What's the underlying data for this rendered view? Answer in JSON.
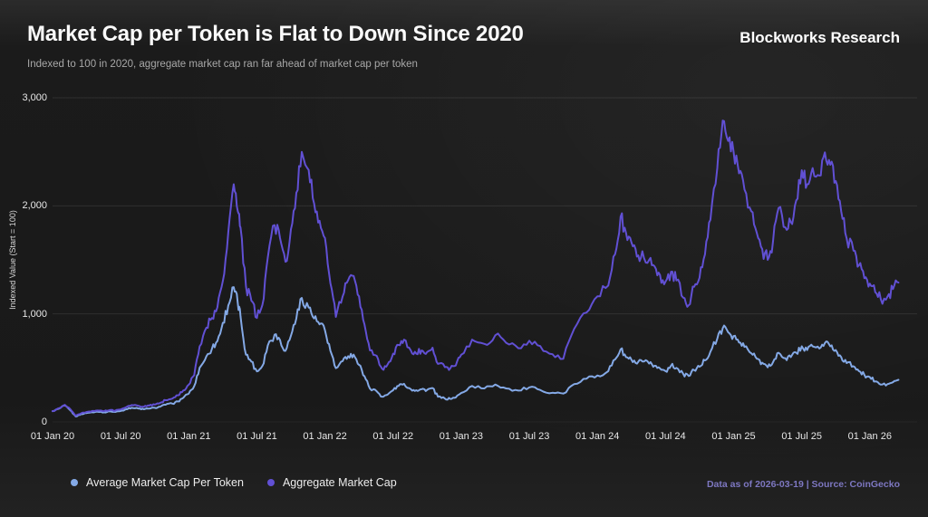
{
  "header": {
    "title": "Market Cap per Token is Flat to Down Since 2020",
    "subtitle": "Indexed to 100 in 2020, aggregate market cap ran far ahead of market cap per token",
    "brand": "Blockworks Research"
  },
  "footer": {
    "note": "Data as of 2026-03-19 | Source: CoinGecko"
  },
  "colors": {
    "background": "#1b1b1b",
    "grid": "rgba(255,255,255,0.09)",
    "baseline": "rgba(255,255,255,0.05)",
    "blue": "#84a9e6",
    "purple": "#6150d4",
    "footer_text": "#7d77c1"
  },
  "chart_data": {
    "type": "line",
    "title": "Market Cap per Token is Flat to Down Since 2020",
    "subtitle": "Indexed to 100 in 2020, aggregate market cap ran far ahead of market cap per token",
    "ylabel": "Indexed Value (Start = 100)",
    "xlabel": "",
    "ylim": [
      0,
      3000
    ],
    "xlim_years_from_2020": [
      0,
      6.25
    ],
    "grid": "horizontal-only",
    "legend_position": "bottom-left",
    "yticks": [
      {
        "value": 0,
        "label": "0"
      },
      {
        "value": 1000,
        "label": "1,000"
      },
      {
        "value": 2000,
        "label": "2,000"
      },
      {
        "value": 3000,
        "label": "3,000"
      }
    ],
    "xticks": [
      {
        "t": 0.0,
        "label": "01 Jan 20"
      },
      {
        "t": 0.5,
        "label": "01 Jul 20"
      },
      {
        "t": 1.0,
        "label": "01 Jan 21"
      },
      {
        "t": 1.5,
        "label": "01 Jul 21"
      },
      {
        "t": 2.0,
        "label": "01 Jan 22"
      },
      {
        "t": 2.5,
        "label": "01 Jul 22"
      },
      {
        "t": 3.0,
        "label": "01 Jan 23"
      },
      {
        "t": 3.5,
        "label": "01 Jul 23"
      },
      {
        "t": 4.0,
        "label": "01 Jan 24"
      },
      {
        "t": 4.5,
        "label": "01 Jul 24"
      },
      {
        "t": 5.0,
        "label": "01 Jan 25"
      },
      {
        "t": 5.5,
        "label": "01 Jul 25"
      },
      {
        "t": 6.0,
        "label": "01 Jan 26"
      }
    ],
    "series": [
      {
        "name": "Average Market Cap Per Token",
        "color": "#84a9e6",
        "points": [
          [
            0,
            100
          ],
          [
            0.05,
            124
          ],
          [
            0.09,
            152
          ],
          [
            0.13,
            108
          ],
          [
            0.17,
            50
          ],
          [
            0.21,
            72
          ],
          [
            0.25,
            82
          ],
          [
            0.29,
            90
          ],
          [
            0.33,
            95
          ],
          [
            0.38,
            89
          ],
          [
            0.42,
            97
          ],
          [
            0.46,
            92
          ],
          [
            0.5,
            101
          ],
          [
            0.54,
            117
          ],
          [
            0.58,
            131
          ],
          [
            0.63,
            124
          ],
          [
            0.67,
            117
          ],
          [
            0.71,
            124
          ],
          [
            0.75,
            131
          ],
          [
            0.79,
            141
          ],
          [
            0.83,
            159
          ],
          [
            0.88,
            169
          ],
          [
            0.92,
            189
          ],
          [
            0.96,
            224
          ],
          [
            1,
            262
          ],
          [
            1.04,
            332
          ],
          [
            1.08,
            502
          ],
          [
            1.13,
            608
          ],
          [
            1.17,
            678
          ],
          [
            1.21,
            748
          ],
          [
            1.25,
            918
          ],
          [
            1.29,
            1078
          ],
          [
            1.33,
            1248
          ],
          [
            1.36,
            1098
          ],
          [
            1.38,
            978
          ],
          [
            1.42,
            622
          ],
          [
            1.46,
            558
          ],
          [
            1.5,
            468
          ],
          [
            1.54,
            518
          ],
          [
            1.58,
            708
          ],
          [
            1.63,
            808
          ],
          [
            1.67,
            758
          ],
          [
            1.71,
            658
          ],
          [
            1.75,
            798
          ],
          [
            1.79,
            958
          ],
          [
            1.83,
            1148
          ],
          [
            1.88,
            1058
          ],
          [
            1.92,
            958
          ],
          [
            1.96,
            903
          ],
          [
            2,
            848
          ],
          [
            2.04,
            658
          ],
          [
            2.08,
            498
          ],
          [
            2.13,
            563
          ],
          [
            2.17,
            608
          ],
          [
            2.21,
            623
          ],
          [
            2.25,
            528
          ],
          [
            2.29,
            423
          ],
          [
            2.33,
            308
          ],
          [
            2.38,
            283
          ],
          [
            2.42,
            233
          ],
          [
            2.46,
            253
          ],
          [
            2.5,
            293
          ],
          [
            2.54,
            333
          ],
          [
            2.58,
            353
          ],
          [
            2.63,
            303
          ],
          [
            2.67,
            293
          ],
          [
            2.71,
            303
          ],
          [
            2.75,
            296
          ],
          [
            2.79,
            313
          ],
          [
            2.83,
            233
          ],
          [
            2.88,
            216
          ],
          [
            2.92,
            213
          ],
          [
            2.96,
            226
          ],
          [
            3,
            268
          ],
          [
            3.08,
            333
          ],
          [
            3.17,
            310
          ],
          [
            3.25,
            346
          ],
          [
            3.33,
            310
          ],
          [
            3.42,
            290
          ],
          [
            3.5,
            320
          ],
          [
            3.58,
            296
          ],
          [
            3.67,
            270
          ],
          [
            3.75,
            262
          ],
          [
            3.83,
            350
          ],
          [
            3.92,
            400
          ],
          [
            4,
            430
          ],
          [
            4.08,
            470
          ],
          [
            4.13,
            578
          ],
          [
            4.17,
            672
          ],
          [
            4.21,
            600
          ],
          [
            4.25,
            575
          ],
          [
            4.29,
            540
          ],
          [
            4.33,
            560
          ],
          [
            4.38,
            540
          ],
          [
            4.42,
            520
          ],
          [
            4.46,
            495
          ],
          [
            4.5,
            470
          ],
          [
            4.54,
            520
          ],
          [
            4.58,
            500
          ],
          [
            4.63,
            445
          ],
          [
            4.67,
            425
          ],
          [
            4.71,
            480
          ],
          [
            4.75,
            510
          ],
          [
            4.79,
            570
          ],
          [
            4.83,
            650
          ],
          [
            4.88,
            770
          ],
          [
            4.92,
            868
          ],
          [
            4.96,
            830
          ],
          [
            5,
            795
          ],
          [
            5.04,
            735
          ],
          [
            5.08,
            695
          ],
          [
            5.13,
            635
          ],
          [
            5.17,
            585
          ],
          [
            5.21,
            548
          ],
          [
            5.25,
            505
          ],
          [
            5.29,
            555
          ],
          [
            5.33,
            640
          ],
          [
            5.38,
            590
          ],
          [
            5.42,
            600
          ],
          [
            5.46,
            640
          ],
          [
            5.5,
            700
          ],
          [
            5.54,
            665
          ],
          [
            5.58,
            700
          ],
          [
            5.63,
            680
          ],
          [
            5.67,
            730
          ],
          [
            5.71,
            700
          ],
          [
            5.75,
            665
          ],
          [
            5.79,
            600
          ],
          [
            5.83,
            545
          ],
          [
            5.88,
            515
          ],
          [
            5.92,
            470
          ],
          [
            5.96,
            435
          ],
          [
            6,
            415
          ],
          [
            6.04,
            375
          ],
          [
            6.08,
            345
          ],
          [
            6.13,
            350
          ],
          [
            6.17,
            368
          ],
          [
            6.21,
            390
          ]
        ]
      },
      {
        "name": "Aggregate Market Cap",
        "color": "#6150d4",
        "points": [
          [
            0,
            100
          ],
          [
            0.05,
            128
          ],
          [
            0.09,
            158
          ],
          [
            0.13,
            118
          ],
          [
            0.17,
            56
          ],
          [
            0.21,
            80
          ],
          [
            0.25,
            92
          ],
          [
            0.29,
            101
          ],
          [
            0.33,
            106
          ],
          [
            0.38,
            100
          ],
          [
            0.42,
            110
          ],
          [
            0.46,
            104
          ],
          [
            0.5,
            116
          ],
          [
            0.54,
            136
          ],
          [
            0.58,
            156
          ],
          [
            0.63,
            149
          ],
          [
            0.67,
            141
          ],
          [
            0.71,
            151
          ],
          [
            0.75,
            161
          ],
          [
            0.79,
            176
          ],
          [
            0.83,
            201
          ],
          [
            0.88,
            216
          ],
          [
            0.92,
            246
          ],
          [
            0.96,
            292
          ],
          [
            1,
            345
          ],
          [
            1.04,
            432
          ],
          [
            1.08,
            700
          ],
          [
            1.13,
            872
          ],
          [
            1.17,
            962
          ],
          [
            1.21,
            1062
          ],
          [
            1.25,
            1305
          ],
          [
            1.29,
            1755
          ],
          [
            1.33,
            2200
          ],
          [
            1.36,
            1950
          ],
          [
            1.38,
            1800
          ],
          [
            1.42,
            1255
          ],
          [
            1.46,
            1122
          ],
          [
            1.5,
            962
          ],
          [
            1.54,
            1082
          ],
          [
            1.58,
            1522
          ],
          [
            1.63,
            1822
          ],
          [
            1.67,
            1702
          ],
          [
            1.71,
            1482
          ],
          [
            1.75,
            1782
          ],
          [
            1.79,
            2122
          ],
          [
            1.83,
            2500
          ],
          [
            1.88,
            2332
          ],
          [
            1.92,
            2022
          ],
          [
            1.96,
            1862
          ],
          [
            2,
            1702
          ],
          [
            2.04,
            1282
          ],
          [
            2.08,
            972
          ],
          [
            2.13,
            1162
          ],
          [
            2.17,
            1312
          ],
          [
            2.21,
            1352
          ],
          [
            2.25,
            1162
          ],
          [
            2.29,
            902
          ],
          [
            2.33,
            662
          ],
          [
            2.38,
            612
          ],
          [
            2.42,
            492
          ],
          [
            2.46,
            532
          ],
          [
            2.5,
            632
          ],
          [
            2.54,
            712
          ],
          [
            2.58,
            762
          ],
          [
            2.63,
            662
          ],
          [
            2.67,
            632
          ],
          [
            2.71,
            662
          ],
          [
            2.75,
            647
          ],
          [
            2.79,
            687
          ],
          [
            2.83,
            537
          ],
          [
            2.88,
            507
          ],
          [
            2.92,
            497
          ],
          [
            2.96,
            522
          ],
          [
            3,
            622
          ],
          [
            3.08,
            762
          ],
          [
            3.17,
            722
          ],
          [
            3.25,
            802
          ],
          [
            3.33,
            732
          ],
          [
            3.42,
            682
          ],
          [
            3.5,
            752
          ],
          [
            3.58,
            702
          ],
          [
            3.67,
            627
          ],
          [
            3.75,
            585
          ],
          [
            3.83,
            862
          ],
          [
            3.92,
            1012
          ],
          [
            4,
            1162
          ],
          [
            4.08,
            1262
          ],
          [
            4.13,
            1552
          ],
          [
            4.17,
            1900
          ],
          [
            4.21,
            1750
          ],
          [
            4.25,
            1660
          ],
          [
            4.29,
            1530
          ],
          [
            4.33,
            1580
          ],
          [
            4.38,
            1500
          ],
          [
            4.42,
            1440
          ],
          [
            4.46,
            1360
          ],
          [
            4.5,
            1300
          ],
          [
            4.54,
            1390
          ],
          [
            4.58,
            1310
          ],
          [
            4.63,
            1150
          ],
          [
            4.67,
            1080
          ],
          [
            4.71,
            1250
          ],
          [
            4.75,
            1335
          ],
          [
            4.79,
            1550
          ],
          [
            4.83,
            1870
          ],
          [
            4.88,
            2350
          ],
          [
            4.92,
            2790
          ],
          [
            4.96,
            2600
          ],
          [
            5,
            2500
          ],
          [
            5.04,
            2300
          ],
          [
            5.08,
            2150
          ],
          [
            5.13,
            1950
          ],
          [
            5.17,
            1750
          ],
          [
            5.21,
            1600
          ],
          [
            5.25,
            1500
          ],
          [
            5.29,
            1680
          ],
          [
            5.33,
            1980
          ],
          [
            5.38,
            1800
          ],
          [
            5.42,
            1850
          ],
          [
            5.46,
            2050
          ],
          [
            5.5,
            2330
          ],
          [
            5.54,
            2200
          ],
          [
            5.58,
            2350
          ],
          [
            5.63,
            2280
          ],
          [
            5.67,
            2495
          ],
          [
            5.71,
            2380
          ],
          [
            5.75,
            2230
          ],
          [
            5.79,
            1950
          ],
          [
            5.83,
            1700
          ],
          [
            5.88,
            1585
          ],
          [
            5.92,
            1450
          ],
          [
            5.96,
            1330
          ],
          [
            6,
            1280
          ],
          [
            6.04,
            1200
          ],
          [
            6.08,
            1140
          ],
          [
            6.13,
            1160
          ],
          [
            6.17,
            1230
          ],
          [
            6.21,
            1290
          ]
        ]
      }
    ]
  }
}
